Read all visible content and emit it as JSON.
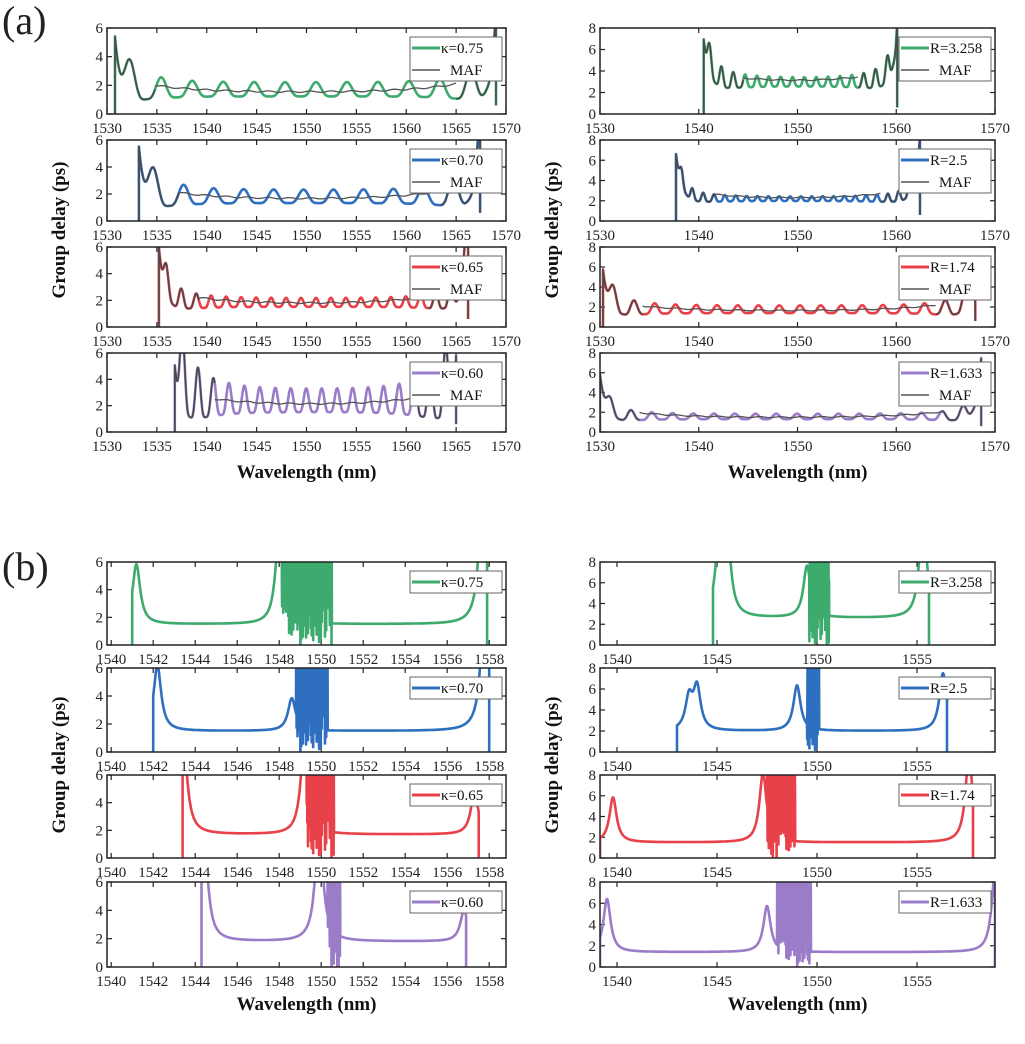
{
  "panels": [
    {
      "label": "(a)"
    },
    {
      "label": "(b)"
    }
  ],
  "chart_data": [
    {
      "type": "line",
      "panel": "(a)",
      "column": "left",
      "xlabel": "Wavelength (nm)",
      "ylabel": "Group delay (ps)",
      "xlim": [
        1530,
        1570
      ],
      "ylim": [
        0,
        6
      ],
      "xticks": [
        1530,
        1535,
        1540,
        1545,
        1550,
        1555,
        1560,
        1565,
        1570
      ],
      "yticks": [
        0,
        2,
        4,
        6
      ],
      "legend_position": "top-right",
      "maf_label": "MAF",
      "subplots": [
        {
          "label": "κ=0.75",
          "color": "#3daa6e",
          "start": 1530.8,
          "end": 1569.0,
          "base": 1.5,
          "period": 3.1,
          "ripple": 0.45
        },
        {
          "label": "κ=0.70",
          "color": "#2f6fbf",
          "start": 1533.2,
          "end": 1567.4,
          "base": 1.6,
          "period": 3.0,
          "ripple": 0.45
        },
        {
          "label": "κ=0.65",
          "color": "#e8414a",
          "start": 1535.2,
          "end": 1566.2,
          "base": 1.7,
          "period": 1.5,
          "ripple": 0.3
        },
        {
          "label": "κ=0.60",
          "color": "#9a7cc8",
          "start": 1536.8,
          "end": 1565.0,
          "base": 2.0,
          "period": 1.55,
          "ripple": 0.8
        }
      ]
    },
    {
      "type": "line",
      "panel": "(a)",
      "column": "right",
      "xlabel": "Wavelength (nm)",
      "ylabel": "Group delay (ps)",
      "xlim": [
        1530,
        1570
      ],
      "ylim": [
        0,
        8
      ],
      "xticks": [
        1530,
        1540,
        1550,
        1560,
        1570
      ],
      "yticks": [
        0,
        2,
        4,
        6,
        8
      ],
      "legend_position": "top-right",
      "maf_label": "MAF",
      "subplots": [
        {
          "label": "R=3.258",
          "color": "#3daa6e",
          "start": 1540.5,
          "end": 1560.1,
          "base": 2.8,
          "period": 1.2,
          "ripple": 0.35
        },
        {
          "label": "R=2.5",
          "color": "#2f6fbf",
          "start": 1537.7,
          "end": 1562.4,
          "base": 2.1,
          "period": 1.1,
          "ripple": 0.2
        },
        {
          "label": "R=1.74",
          "color": "#e8414a",
          "start": 1530.3,
          "end": 1568.0,
          "base": 1.6,
          "period": 2.1,
          "ripple": 0.35
        },
        {
          "label": "R=1.633",
          "color": "#9a7cc8",
          "start": 1530.0,
          "end": 1568.6,
          "base": 1.45,
          "period": 2.1,
          "ripple": 0.25
        }
      ]
    },
    {
      "type": "line",
      "panel": "(b)",
      "column": "left",
      "xlabel": "Wavelength (nm)",
      "ylabel": "Group delay (ps)",
      "xlim": [
        1539.8,
        1558.8
      ],
      "ylim": [
        0,
        6
      ],
      "xticks": [
        1540,
        1542,
        1544,
        1546,
        1548,
        1550,
        1552,
        1554,
        1556,
        1558
      ],
      "yticks": [
        0,
        2,
        4,
        6
      ],
      "legend_position": "top-right",
      "subplots": [
        {
          "label": "κ=0.75",
          "color": "#3daa6e",
          "start": 1541.0,
          "end": 1557.9,
          "level": 1.5,
          "peaks": [
            [
              1541.2,
              2.6
            ],
            [
              1548.0,
              4
            ],
            [
              1557.7,
              6
            ]
          ],
          "chaos": [
            1548.1,
            1550.5
          ]
        },
        {
          "label": "κ=0.70",
          "color": "#2f6fbf",
          "start": 1542.0,
          "end": 1558.0,
          "level": 1.5,
          "peaks": [
            [
              1542.2,
              2.8
            ],
            [
              1548.6,
              1.4
            ],
            [
              1557.8,
              6
            ]
          ],
          "chaos": [
            1548.8,
            1550.3
          ]
        },
        {
          "label": "κ=0.65",
          "color": "#e8414a",
          "start": 1543.4,
          "end": 1557.5,
          "level": 1.7,
          "peaks": [
            [
              1543.4,
              5
            ],
            [
              1549.2,
              4
            ],
            [
              1557.3,
              1.8
            ]
          ],
          "chaos": [
            1549.3,
            1550.6
          ]
        },
        {
          "label": "κ=0.60",
          "color": "#9a7cc8",
          "start": 1544.3,
          "end": 1556.9,
          "level": 1.8,
          "peaks": [
            [
              1544.4,
              5
            ],
            [
              1549.9,
              5
            ],
            [
              1556.8,
              1.3
            ]
          ],
          "chaos": [
            1550.3,
            1550.9
          ]
        }
      ]
    },
    {
      "type": "line",
      "panel": "(b)",
      "column": "right",
      "xlabel": "Wavelength (nm)",
      "ylabel": "Group delay (ps)",
      "xlim": [
        1539.15,
        1558.9
      ],
      "ylim": [
        0,
        8
      ],
      "xticks": [
        1540,
        1545,
        1550,
        1555
      ],
      "yticks": [
        0,
        2,
        4,
        6,
        8
      ],
      "legend_position": "top-right",
      "subplots": [
        {
          "label": "R=3.258",
          "color": "#3daa6e",
          "start": 1544.8,
          "end": 1555.6,
          "level": 2.6,
          "peaks": [
            [
              1545.1,
              4
            ],
            [
              1545.5,
              4.6
            ],
            [
              1549.5,
              3
            ],
            [
              1555.3,
              6
            ]
          ],
          "chaos": [
            1549.6,
            1550.6
          ]
        },
        {
          "label": "R=2.5",
          "color": "#2f6fbf",
          "start": 1543.0,
          "end": 1556.5,
          "level": 2.0,
          "peaks": [
            [
              1543.6,
              1.8
            ],
            [
              1544.0,
              2.4
            ],
            [
              1549.0,
              2.6
            ],
            [
              1556.3,
              3.3
            ]
          ],
          "chaos": [
            1549.5,
            1550.1
          ]
        },
        {
          "label": "R=1.74",
          "color": "#e8414a",
          "start": 1539.15,
          "end": 1557.8,
          "level": 1.5,
          "peaks": [
            [
              1539.8,
              2.6
            ],
            [
              1547.3,
              4
            ],
            [
              1557.6,
              5
            ]
          ],
          "chaos": [
            1547.5,
            1548.9
          ]
        },
        {
          "label": "R=1.633",
          "color": "#9a7cc8",
          "start": 1539.15,
          "end": 1558.9,
          "level": 1.4,
          "peaks": [
            [
              1539.5,
              3
            ],
            [
              1547.5,
              2.6
            ],
            [
              1558.9,
              4.4
            ]
          ],
          "chaos": [
            1548.0,
            1549.7
          ]
        }
      ]
    }
  ]
}
